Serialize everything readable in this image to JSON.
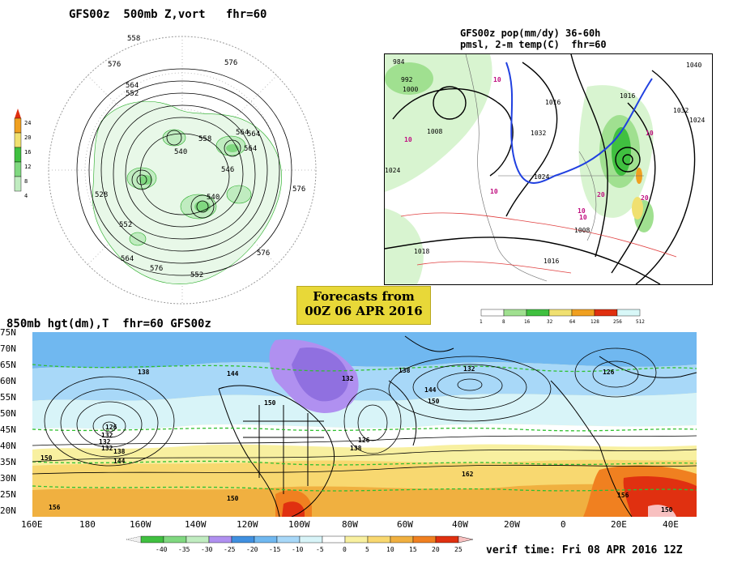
{
  "panel_500mb": {
    "title": "GFS00z  500mb Z,vort   fhr=60",
    "legend_ticks": [
      "24",
      "20",
      "16",
      "12",
      "8",
      "4"
    ],
    "legend_colors": [
      "#e03010",
      "#f0a020",
      "#f0e070",
      "#40c040",
      "#80d880",
      "#c0ecc0"
    ],
    "contour_labels": [
      "558",
      "576",
      "576",
      "564",
      "552",
      "564",
      "540",
      "558",
      "564",
      "546",
      "528",
      "540",
      "552",
      "564",
      "576",
      "576",
      "552",
      "564",
      "576"
    ]
  },
  "panel_pop": {
    "title_line1": "GFS00z pop(mm/dy) 36-60h",
    "title_line2": "pmsl, 2-m temp(C)  fhr=60",
    "pressure_labels": [
      "984",
      "1000",
      "992",
      "1008",
      "1016",
      "1024",
      "1032",
      "1040",
      "1032",
      "1024",
      "1016",
      "1018",
      "1016",
      "1008",
      "1024"
    ],
    "temp_labels": [
      "10",
      "10",
      "10",
      "20",
      "10",
      "20",
      "10",
      "10"
    ],
    "legend_ticks": [
      "1",
      "8",
      "16",
      "32",
      "64",
      "128",
      "256",
      "512"
    ],
    "legend_colors": [
      "#d8f4d0",
      "#a0e090",
      "#40c040",
      "#f0e070",
      "#f0a020",
      "#e03010",
      "#d8f8f8"
    ]
  },
  "banner": {
    "line1": "Forecasts from",
    "line2": "00Z 06 APR 2016"
  },
  "panel_850mb": {
    "title": "850mb hgt(dm),T  fhr=60 GFS00z",
    "lat_labels": [
      "75N",
      "70N",
      "65N",
      "60N",
      "55N",
      "50N",
      "45N",
      "40N",
      "35N",
      "30N",
      "25N",
      "20N"
    ],
    "lon_labels": [
      "160E",
      "180",
      "160W",
      "140W",
      "120W",
      "100W",
      "80W",
      "60W",
      "40W",
      "20W",
      "0",
      "20E",
      "40E"
    ],
    "height_labels": [
      "138",
      "144",
      "132",
      "138",
      "132",
      "126",
      "132",
      "138",
      "144",
      "150",
      "156",
      "150",
      "132",
      "126",
      "138",
      "144",
      "162",
      "150",
      "132",
      "126",
      "150",
      "156",
      "150"
    ],
    "legend_ticks": [
      "-40",
      "-35",
      "-30",
      "-25",
      "-20",
      "-15",
      "-10",
      "-5",
      "0",
      "5",
      "10",
      "15",
      "20",
      "25"
    ],
    "legend_colors": [
      "#40c040",
      "#80d880",
      "#c0ecc0",
      "#b090f0",
      "#4090e0",
      "#70b8f0",
      "#a8d8f8",
      "#d8f4f8",
      "#ffffff",
      "#f8f0a0",
      "#f8d870",
      "#f0b040",
      "#f08020",
      "#e03010",
      "#f8c0c0"
    ]
  },
  "verif_time": "verif time: Fri 08 APR 2016 12Z"
}
